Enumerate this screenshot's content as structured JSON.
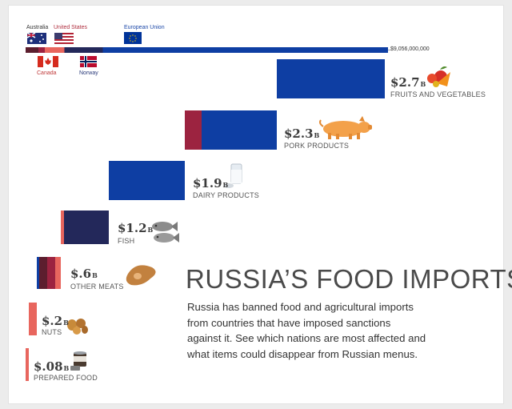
{
  "title": "RUSSIA’S FOOD IMPORTS",
  "description": [
    "Russia has banned food and agricultural imports",
    "from countries that have imposed sanctions",
    "against it. See which nations are most affected and",
    "what items could disappear from Russian menus."
  ],
  "colors": {
    "australia": "#5c1e2e",
    "united_states": "#9c2340",
    "canada": "#e8665e",
    "norway": "#23285a",
    "european_union": "#0e3ea3"
  },
  "flag_labels": {
    "australia": "Australia",
    "united_states": "United States",
    "european_union": "European Union",
    "canada": "Canada",
    "norway": "Norway"
  },
  "chart_data": {
    "type": "bar",
    "total": {
      "value": 9056000000,
      "label": "$9,056,000,000"
    },
    "total_breakdown": [
      {
        "country": "australia",
        "value": 0.32
      },
      {
        "country": "united_states",
        "value": 0.16
      },
      {
        "country": "canada",
        "value": 0.49
      },
      {
        "country": "norway",
        "value": 0.96
      },
      {
        "country": "european_union",
        "value": 7.13
      }
    ],
    "categories": [
      {
        "name": "FRUITS AND VEGETABLES",
        "value": 2.7,
        "label": "$2.7",
        "unit": "B",
        "icon": "fruit-icon",
        "segments": [
          {
            "country": "european_union",
            "value": 2.7
          }
        ]
      },
      {
        "name": "PORK PRODUCTS",
        "value": 2.3,
        "label": "$2.3",
        "unit": "B",
        "icon": "pig-icon",
        "segments": [
          {
            "country": "united_states",
            "value": 0.42
          },
          {
            "country": "european_union",
            "value": 1.88
          }
        ]
      },
      {
        "name": "DAIRY PRODUCTS",
        "value": 1.9,
        "label": "$1.9",
        "unit": "B",
        "icon": "milk-icon",
        "segments": [
          {
            "country": "european_union",
            "value": 1.9
          }
        ]
      },
      {
        "name": "FISH",
        "value": 1.2,
        "label": "$1.2",
        "unit": "B",
        "icon": "fish-icon",
        "segments": [
          {
            "country": "canada",
            "value": 0.08
          },
          {
            "country": "norway",
            "value": 1.12
          }
        ]
      },
      {
        "name": "OTHER MEATS",
        "value": 0.6,
        "label": "$.6",
        "unit": "B",
        "icon": "meat-icon",
        "segments": [
          {
            "country": "european_union",
            "value": 0.06
          },
          {
            "country": "australia",
            "value": 0.2
          },
          {
            "country": "united_states",
            "value": 0.2
          },
          {
            "country": "canada",
            "value": 0.14
          }
        ]
      },
      {
        "name": "NUTS",
        "value": 0.2,
        "label": "$.2",
        "unit": "B",
        "icon": "nuts-icon",
        "segments": [
          {
            "country": "canada",
            "value": 0.2
          }
        ]
      },
      {
        "name": "PREPARED FOOD",
        "value": 0.08,
        "label": "$.08",
        "unit": "B",
        "icon": "can-icon",
        "segments": [
          {
            "country": "canada",
            "value": 0.08
          }
        ]
      }
    ]
  }
}
